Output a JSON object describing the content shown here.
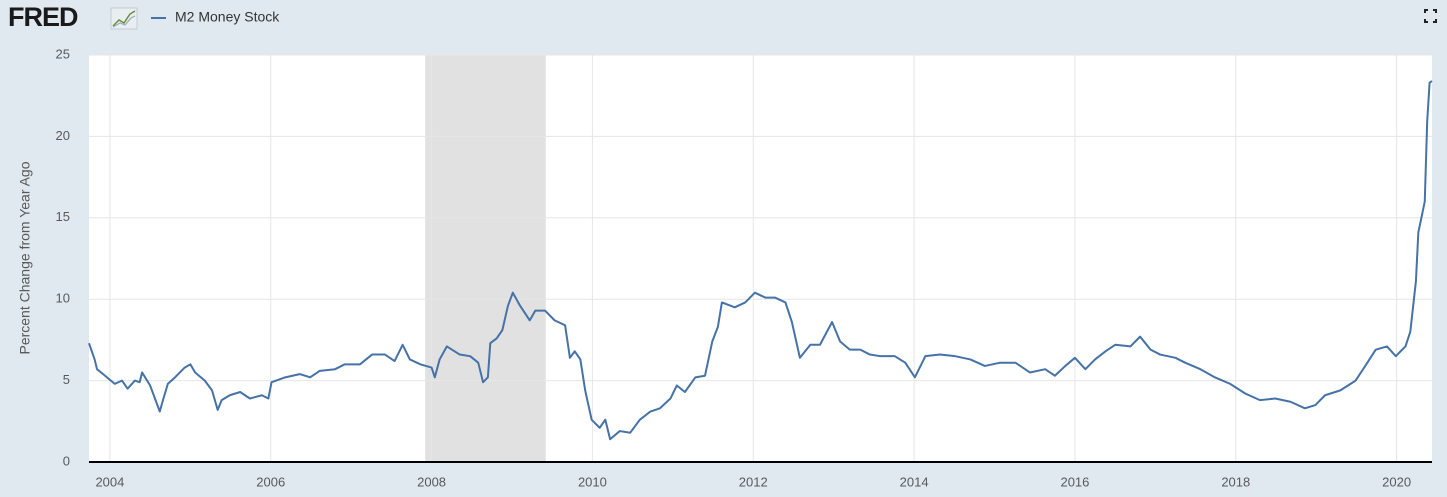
{
  "chart_data": {
    "type": "line",
    "logo": "FRED",
    "ylabel": "Percent Change from Year Ago",
    "xlim": [
      2003.74,
      2020.44
    ],
    "xticks": [
      2004,
      2006,
      2008,
      2010,
      2012,
      2014,
      2016,
      2018,
      2020
    ],
    "ylim": [
      0,
      25
    ],
    "yticks": [
      0,
      5,
      10,
      15,
      20,
      25
    ],
    "grid": true,
    "recessions": [
      {
        "start": 2007.92,
        "end": 2009.42
      }
    ],
    "x": [
      2003.74,
      2003.81,
      2003.84,
      2003.94,
      2004.06,
      2004.15,
      2004.22,
      2004.31,
      2004.37,
      2004.4,
      2004.5,
      2004.56,
      2004.62,
      2004.66,
      2004.72,
      2004.81,
      2004.93,
      2005.0,
      2005.06,
      2005.18,
      2005.27,
      2005.34,
      2005.39,
      2005.49,
      2005.62,
      2005.74,
      2005.89,
      2005.97,
      2006.01,
      2006.18,
      2006.36,
      2006.49,
      2006.61,
      2006.8,
      2006.92,
      2007.11,
      2007.26,
      2007.42,
      2007.54,
      2007.64,
      2007.73,
      2007.86,
      2008.0,
      2008.04,
      2008.1,
      2008.19,
      2008.35,
      2008.48,
      2008.58,
      2008.64,
      2008.7,
      2008.73,
      2008.81,
      2008.88,
      2008.95,
      2009.01,
      2009.1,
      2009.22,
      2009.29,
      2009.41,
      2009.53,
      2009.66,
      2009.72,
      2009.78,
      2009.85,
      2009.91,
      2009.99,
      2010.09,
      2010.16,
      2010.22,
      2010.34,
      2010.47,
      2010.59,
      2010.72,
      2010.84,
      2010.97,
      2011.05,
      2011.15,
      2011.28,
      2011.4,
      2011.49,
      2011.56,
      2011.61,
      2011.77,
      2011.9,
      2012.02,
      2012.15,
      2012.27,
      2012.4,
      2012.48,
      2012.58,
      2012.71,
      2012.83,
      2012.98,
      2013.08,
      2013.2,
      2013.33,
      2013.45,
      2013.58,
      2013.76,
      2013.89,
      2014.01,
      2014.14,
      2014.32,
      2014.51,
      2014.7,
      2014.88,
      2015.07,
      2015.26,
      2015.44,
      2015.63,
      2015.75,
      2015.88,
      2016.0,
      2016.13,
      2016.25,
      2016.38,
      2016.5,
      2016.69,
      2016.81,
      2016.94,
      2017.06,
      2017.25,
      2017.37,
      2017.56,
      2017.74,
      2017.93,
      2018.12,
      2018.3,
      2018.49,
      2018.68,
      2018.86,
      2018.99,
      2019.11,
      2019.3,
      2019.49,
      2019.61,
      2019.74,
      2019.88,
      2019.99,
      2020.11,
      2020.17,
      2020.24,
      2020.27,
      2020.35,
      2020.38,
      2020.41,
      2020.44
    ],
    "series": [
      {
        "name": "M2 Money Stock",
        "color": "#4572a7",
        "values": [
          7.3,
          6.3,
          5.7,
          5.3,
          4.8,
          5.0,
          4.5,
          5.0,
          4.9,
          5.5,
          4.7,
          3.9,
          3.1,
          3.8,
          4.8,
          5.2,
          5.8,
          6.0,
          5.5,
          5.0,
          4.4,
          3.2,
          3.8,
          4.1,
          4.3,
          3.9,
          4.1,
          3.9,
          4.9,
          5.2,
          5.4,
          5.2,
          5.6,
          5.7,
          6.0,
          6.0,
          6.6,
          6.6,
          6.2,
          7.2,
          6.3,
          6.0,
          5.8,
          5.2,
          6.3,
          7.1,
          6.6,
          6.5,
          6.1,
          4.9,
          5.2,
          7.3,
          7.6,
          8.1,
          9.6,
          10.4,
          9.6,
          8.7,
          9.3,
          9.3,
          8.7,
          8.4,
          6.4,
          6.8,
          6.3,
          4.4,
          2.6,
          2.1,
          2.6,
          1.4,
          1.9,
          1.8,
          2.6,
          3.1,
          3.3,
          3.9,
          4.7,
          4.3,
          5.2,
          5.3,
          7.4,
          8.3,
          9.8,
          9.5,
          9.8,
          10.4,
          10.1,
          10.1,
          9.8,
          8.6,
          6.4,
          7.2,
          7.2,
          8.6,
          7.4,
          6.9,
          6.9,
          6.6,
          6.5,
          6.5,
          6.1,
          5.2,
          6.5,
          6.6,
          6.5,
          6.3,
          5.9,
          6.1,
          6.1,
          5.5,
          5.7,
          5.3,
          5.9,
          6.4,
          5.7,
          6.3,
          6.8,
          7.2,
          7.1,
          7.7,
          6.9,
          6.6,
          6.4,
          6.1,
          5.7,
          5.2,
          4.8,
          4.2,
          3.8,
          3.9,
          3.7,
          3.3,
          3.5,
          4.1,
          4.4,
          5.0,
          5.9,
          6.9,
          7.1,
          6.5,
          7.1,
          8.0,
          11.1,
          14.1,
          16.0,
          20.9,
          23.3,
          23.4
        ]
      }
    ]
  }
}
